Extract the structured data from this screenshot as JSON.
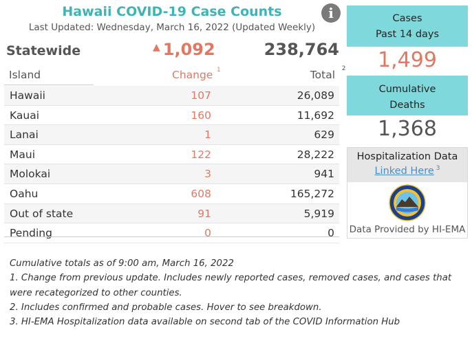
{
  "header": {
    "title": "Hawaii COVID-19 Case Counts",
    "updated": "Last Updated: Wednesday, March 16, 2022 (Updated Weekly)",
    "info_glyph": "i"
  },
  "statewide": {
    "label": "Statewide",
    "arrow": "▲",
    "change": "1,092",
    "total": "238,764"
  },
  "table": {
    "col_island": "Island",
    "col_change": "Change",
    "col_change_fn": "1",
    "col_total": "Total",
    "col_total_fn": "2",
    "rows": [
      {
        "name": "Hawaii",
        "change": "107",
        "total": "26,089"
      },
      {
        "name": "Kauai",
        "change": "160",
        "total": "11,692"
      },
      {
        "name": "Lanai",
        "change": "1",
        "total": "629"
      },
      {
        "name": "Maui",
        "change": "122",
        "total": "28,222"
      },
      {
        "name": "Molokai",
        "change": "3",
        "total": "941"
      },
      {
        "name": "Oahu",
        "change": "608",
        "total": "165,272"
      },
      {
        "name": "Out of state",
        "change": "91",
        "total": "5,919"
      },
      {
        "name": "Pending",
        "change": "0",
        "total": "0"
      }
    ]
  },
  "cards": {
    "cases_line1": "Cases",
    "cases_line2": "Past 14 days",
    "cases_value": "1,499",
    "deaths_line1": "Cumulative",
    "deaths_line2": "Deaths",
    "deaths_value": "1,368"
  },
  "hospitalization": {
    "title": "Hospitalization Data",
    "link": "Linked Here",
    "link_fn": "3",
    "seal_icon": "hi-ema-seal-icon",
    "footer": "Data Provided by HI-EMA"
  },
  "notes": [
    "Cumulative totals as of 9:00 am, March 16, 2022",
    "1. Change from previous update. Includes newly reported cases, removed cases, and cases that were recategorized to other counties.",
    "2. Includes confirmed and probable cases. Hover to see breakdown.",
    "3. HI-EMA Hospitalization data available on second tab of the COVID Information Hub"
  ],
  "colors": {
    "accent": "#3db4b8",
    "change": "#e07862",
    "card_bg": "#7fd9dc",
    "link": "#4a8fc0"
  }
}
